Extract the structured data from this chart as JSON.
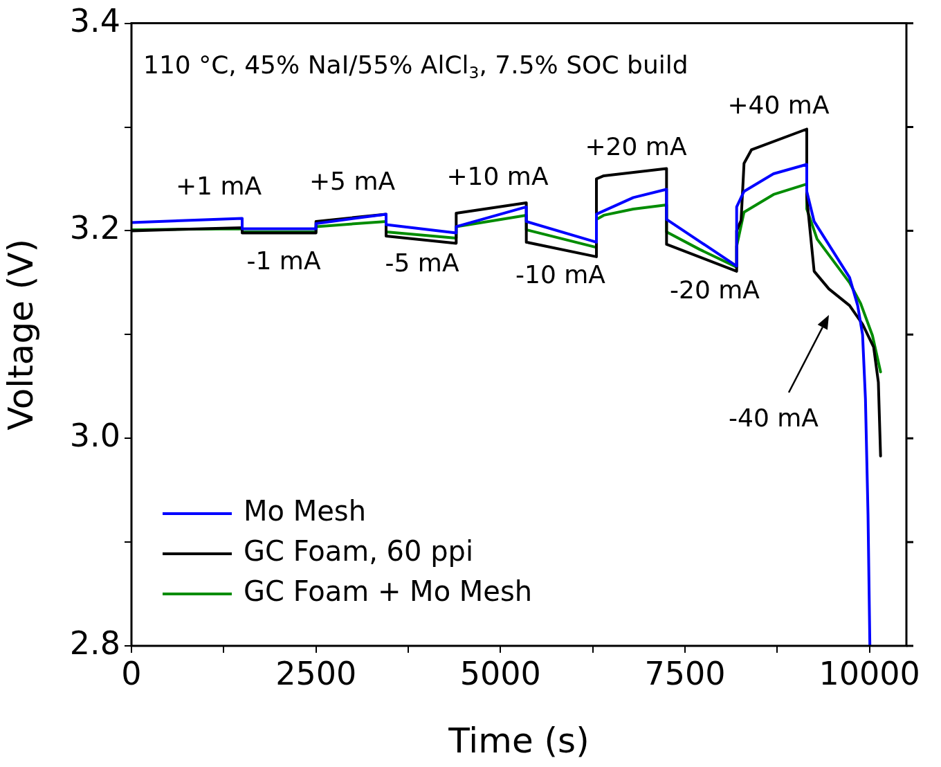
{
  "chart_data": {
    "type": "line",
    "xlabel": "Time (s)",
    "ylabel": "Voltage (V)",
    "xlim": [
      0,
      10500
    ],
    "ylim": [
      2.8,
      3.4
    ],
    "xticks": [
      0,
      {
        "value": 1250,
        "label": null
      },
      2500,
      {
        "value": 3750,
        "label": null
      },
      5000,
      {
        "value": 6250,
        "label": null
      },
      7500,
      {
        "value": 8750,
        "label": null
      },
      10000
    ],
    "yticks": [
      2.8,
      {
        "value": 2.9,
        "label": null
      },
      {
        "value": 3.0,
        "label": "3.0"
      },
      {
        "value": 3.1,
        "label": null
      },
      3.2,
      {
        "value": 3.3,
        "label": null
      },
      3.4
    ],
    "grid": false,
    "legend": "bottom left",
    "marker": "none",
    "line_style": "solid",
    "series": [
      {
        "name": "Mo Mesh",
        "color": "#0000ff",
        "x": [
          0,
          1500,
          1500,
          2500,
          2500,
          3450,
          3450,
          4400,
          4400,
          5350,
          5350,
          6300,
          6300,
          6800,
          7250,
          7250,
          8200,
          8200,
          8300,
          8700,
          9150,
          9150,
          9250,
          9730,
          9840,
          9906,
          9945,
          9980,
          10005
        ],
        "values": [
          3.208,
          3.212,
          3.202,
          3.202,
          3.207,
          3.216,
          3.206,
          3.198,
          3.204,
          3.223,
          3.209,
          3.189,
          3.216,
          3.232,
          3.24,
          3.211,
          3.166,
          3.223,
          3.238,
          3.255,
          3.264,
          3.238,
          3.209,
          3.155,
          3.128,
          3.1,
          3.038,
          2.926,
          2.8
        ]
      },
      {
        "name": "GC Foam, 60 ppi",
        "color": "#000000",
        "x": [
          0,
          1500,
          1500,
          2500,
          2500,
          3450,
          3450,
          4400,
          4400,
          5350,
          5350,
          6300,
          6300,
          6400,
          7250,
          7250,
          8200,
          8200,
          8260,
          8300,
          8400,
          9150,
          9150,
          9250,
          9450,
          9730,
          9906,
          10056,
          10120,
          10150
        ],
        "values": [
          3.2,
          3.203,
          3.198,
          3.198,
          3.209,
          3.216,
          3.195,
          3.188,
          3.217,
          3.227,
          3.189,
          3.175,
          3.25,
          3.253,
          3.26,
          3.187,
          3.161,
          3.2,
          3.21,
          3.265,
          3.278,
          3.298,
          3.232,
          3.161,
          3.144,
          3.128,
          3.11,
          3.088,
          3.054,
          2.983
        ]
      },
      {
        "name": "GC Foam + Mo Mesh",
        "color": "#008c00",
        "x": [
          0,
          1500,
          1500,
          2500,
          2500,
          3450,
          3450,
          4400,
          4400,
          5350,
          5350,
          6300,
          6300,
          6400,
          6800,
          7250,
          7250,
          7700,
          8200,
          8200,
          8300,
          8700,
          9150,
          9150,
          9290,
          9730,
          9880,
          10040,
          10150
        ],
        "values": [
          3.201,
          3.202,
          3.199,
          3.199,
          3.204,
          3.209,
          3.199,
          3.193,
          3.204,
          3.215,
          3.201,
          3.184,
          3.211,
          3.215,
          3.221,
          3.225,
          3.199,
          3.182,
          3.165,
          3.185,
          3.218,
          3.235,
          3.245,
          3.221,
          3.192,
          3.15,
          3.13,
          3.099,
          3.064
        ]
      }
    ],
    "annotations": [
      "110 °C, 45% NaI/55% AlCl$_{3}$, 7.5% SOC build",
      "+1 mA",
      "-1 mA",
      "+5 mA",
      "-5 mA",
      "+10 mA",
      "-10 mA",
      "+20 mA",
      "-20 mA",
      "+40 mA",
      "-40 mA"
    ]
  }
}
